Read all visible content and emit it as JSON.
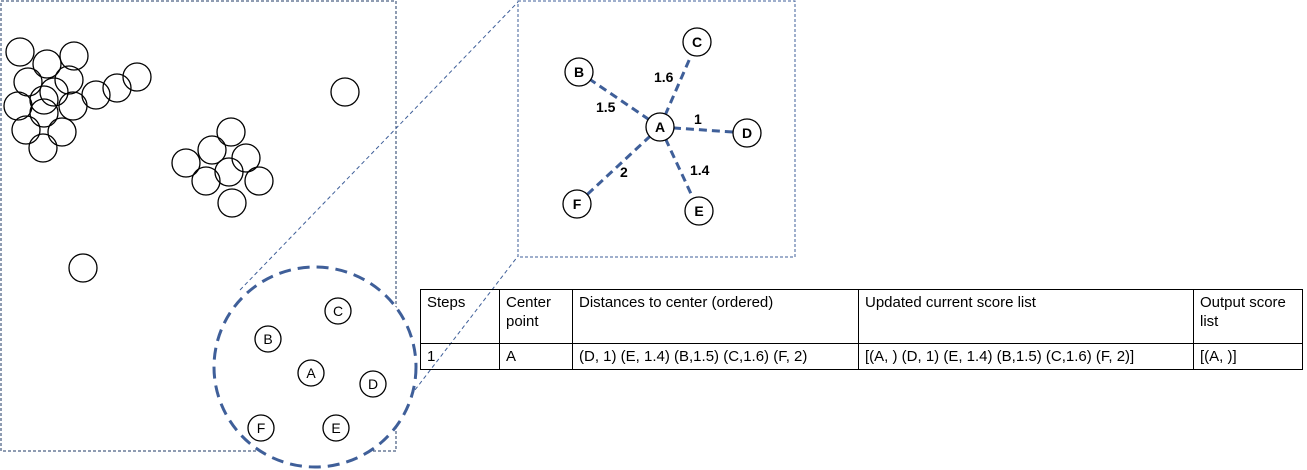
{
  "zoom_view": {
    "center": "A",
    "neighbors": [
      {
        "label": "B",
        "distance": "1.5"
      },
      {
        "label": "C",
        "distance": "1.6"
      },
      {
        "label": "D",
        "distance": "1"
      },
      {
        "label": "E",
        "distance": "1.4"
      },
      {
        "label": "F",
        "distance": "2"
      }
    ]
  },
  "highlight_points": [
    "B",
    "C",
    "A",
    "D",
    "F",
    "E"
  ],
  "table": {
    "headers": [
      "Steps",
      "Center point",
      "Distances to center (ordered)",
      "Updated current score list",
      "Output score list"
    ],
    "rows": [
      [
        "1",
        "A",
        "(D, 1) (E, 1.4) (B,1.5) (C,1.6) (F, 2)",
        "[(A, ) (D, 1) (E, 1.4) (B,1.5) (C,1.6) (F, 2)]",
        "[(A, )]"
      ]
    ]
  },
  "colors": {
    "dashed_accent": "#3f5f99",
    "frame": "#1f3864",
    "stroke": "#000000"
  }
}
